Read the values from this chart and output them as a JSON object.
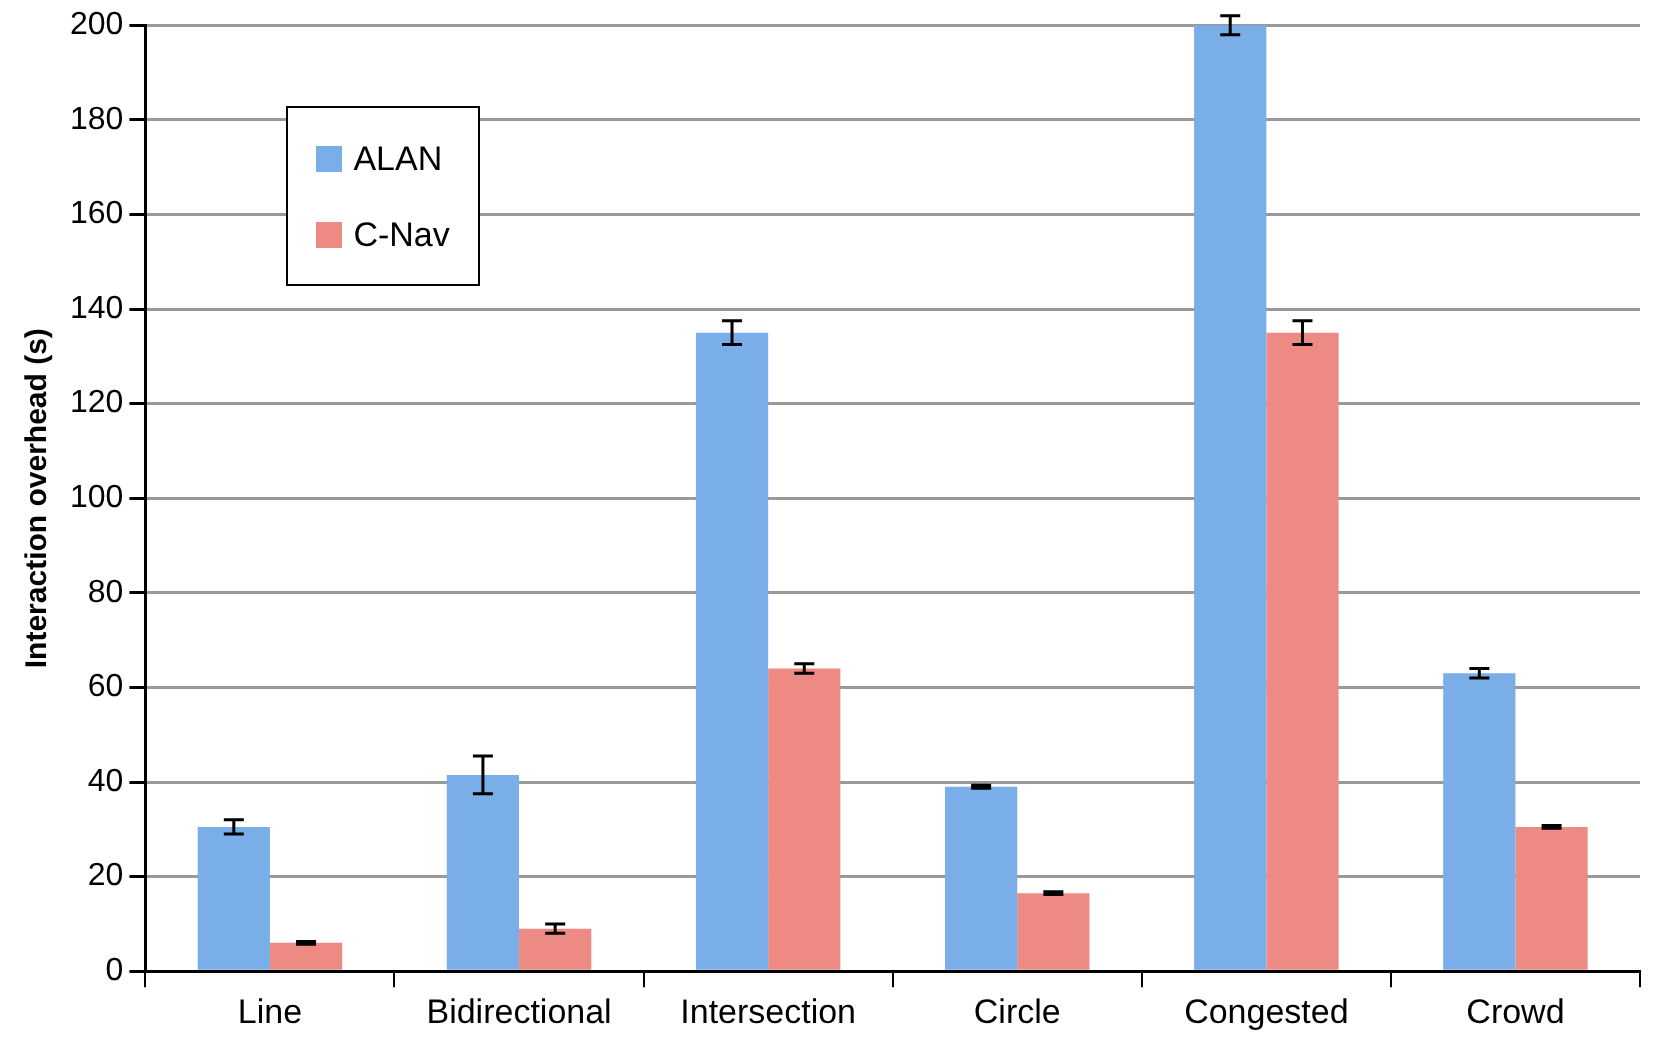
{
  "chart_data": {
    "type": "bar",
    "ylabel": "Interaction overhead (s)",
    "categories": [
      "Line",
      "Bidirectional",
      "Intersection",
      "Circle",
      "Congested",
      "Crowd"
    ],
    "series": [
      {
        "name": "ALAN",
        "color": "#7aaee8",
        "values": [
          30.5,
          41.5,
          135,
          39,
          200,
          63
        ],
        "errors": [
          1.5,
          4,
          2.5,
          0.3,
          2,
          1
        ]
      },
      {
        "name": "C-Nav",
        "color": "#ee8a84",
        "values": [
          6,
          9,
          64,
          16.5,
          135,
          30.5
        ],
        "errors": [
          0.3,
          1,
          1,
          0.3,
          2.5,
          0.3
        ]
      }
    ],
    "ylim": [
      0,
      200
    ],
    "yticks": [
      0,
      20,
      40,
      60,
      80,
      100,
      120,
      140,
      160,
      180,
      200
    ],
    "grid": "y",
    "legend": "top left"
  }
}
